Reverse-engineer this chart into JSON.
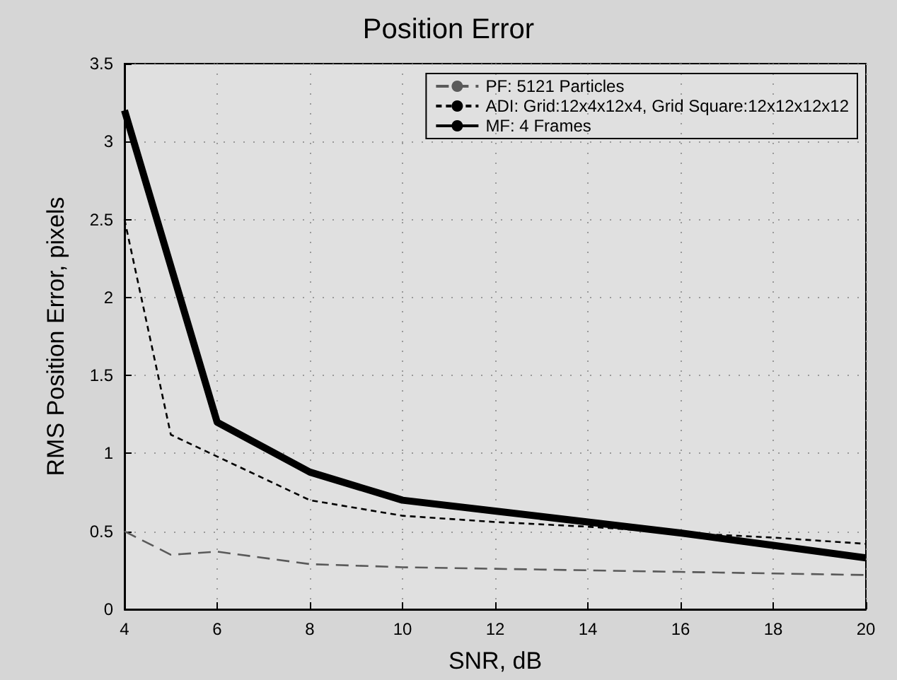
{
  "chart_data": {
    "type": "line",
    "title": "Position Error",
    "xlabel": "SNR, dB",
    "ylabel": "RMS Position Error, pixels",
    "xlim": [
      4,
      20
    ],
    "xticks": [
      4,
      6,
      8,
      10,
      12,
      14,
      16,
      18,
      20
    ],
    "ylim": [
      0,
      3.5
    ],
    "yticks": [
      0,
      0.5,
      1,
      1.5,
      2,
      2.5,
      3,
      3.5
    ],
    "grid": true,
    "legend": "top right",
    "marker": "none",
    "series": [
      {
        "name": "PF: 5121 Particles",
        "color": "#5a5a5a",
        "line_style": "dashed",
        "x": [
          4,
          5,
          6,
          8,
          10,
          12,
          14,
          16,
          18,
          20
        ],
        "values": [
          0.5,
          0.35,
          0.37,
          0.29,
          0.27,
          0.26,
          0.25,
          0.24,
          0.23,
          0.22
        ]
      },
      {
        "name": "ADI: Grid:12x4x12x4, Grid Square:12x12x12x12",
        "color": "#000000",
        "line_style": "dotted",
        "x": [
          4,
          5,
          6,
          8,
          10,
          12,
          14,
          16,
          18,
          20
        ],
        "values": [
          2.5,
          1.12,
          0.98,
          0.7,
          0.6,
          0.56,
          0.53,
          0.49,
          0.46,
          0.42
        ]
      },
      {
        "name": "MF: 4 Frames",
        "color": "#000000",
        "line_style": "solid",
        "x": [
          4,
          6,
          8,
          10,
          12,
          14,
          16,
          18,
          20
        ],
        "values": [
          3.2,
          1.2,
          0.88,
          0.7,
          0.63,
          0.56,
          0.49,
          0.41,
          0.33
        ]
      }
    ]
  }
}
